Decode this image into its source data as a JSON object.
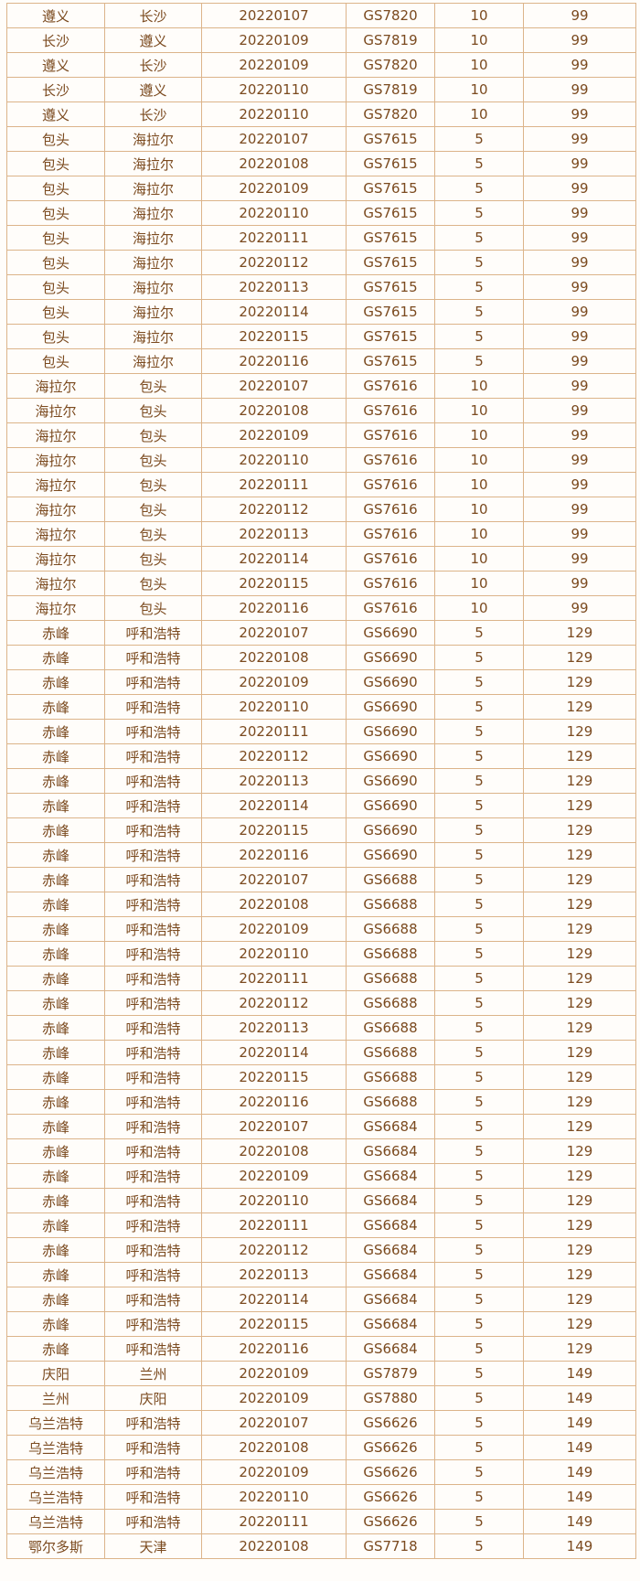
{
  "colors": {
    "border": "#dcb48a",
    "text": "#7b4a1f",
    "background": "#fffdfa"
  },
  "rows": [
    [
      "遵义",
      "长沙",
      "20220107",
      "GS7820",
      "10",
      "99"
    ],
    [
      "长沙",
      "遵义",
      "20220109",
      "GS7819",
      "10",
      "99"
    ],
    [
      "遵义",
      "长沙",
      "20220109",
      "GS7820",
      "10",
      "99"
    ],
    [
      "长沙",
      "遵义",
      "20220110",
      "GS7819",
      "10",
      "99"
    ],
    [
      "遵义",
      "长沙",
      "20220110",
      "GS7820",
      "10",
      "99"
    ],
    [
      "包头",
      "海拉尔",
      "20220107",
      "GS7615",
      "5",
      "99"
    ],
    [
      "包头",
      "海拉尔",
      "20220108",
      "GS7615",
      "5",
      "99"
    ],
    [
      "包头",
      "海拉尔",
      "20220109",
      "GS7615",
      "5",
      "99"
    ],
    [
      "包头",
      "海拉尔",
      "20220110",
      "GS7615",
      "5",
      "99"
    ],
    [
      "包头",
      "海拉尔",
      "20220111",
      "GS7615",
      "5",
      "99"
    ],
    [
      "包头",
      "海拉尔",
      "20220112",
      "GS7615",
      "5",
      "99"
    ],
    [
      "包头",
      "海拉尔",
      "20220113",
      "GS7615",
      "5",
      "99"
    ],
    [
      "包头",
      "海拉尔",
      "20220114",
      "GS7615",
      "5",
      "99"
    ],
    [
      "包头",
      "海拉尔",
      "20220115",
      "GS7615",
      "5",
      "99"
    ],
    [
      "包头",
      "海拉尔",
      "20220116",
      "GS7615",
      "5",
      "99"
    ],
    [
      "海拉尔",
      "包头",
      "20220107",
      "GS7616",
      "10",
      "99"
    ],
    [
      "海拉尔",
      "包头",
      "20220108",
      "GS7616",
      "10",
      "99"
    ],
    [
      "海拉尔",
      "包头",
      "20220109",
      "GS7616",
      "10",
      "99"
    ],
    [
      "海拉尔",
      "包头",
      "20220110",
      "GS7616",
      "10",
      "99"
    ],
    [
      "海拉尔",
      "包头",
      "20220111",
      "GS7616",
      "10",
      "99"
    ],
    [
      "海拉尔",
      "包头",
      "20220112",
      "GS7616",
      "10",
      "99"
    ],
    [
      "海拉尔",
      "包头",
      "20220113",
      "GS7616",
      "10",
      "99"
    ],
    [
      "海拉尔",
      "包头",
      "20220114",
      "GS7616",
      "10",
      "99"
    ],
    [
      "海拉尔",
      "包头",
      "20220115",
      "GS7616",
      "10",
      "99"
    ],
    [
      "海拉尔",
      "包头",
      "20220116",
      "GS7616",
      "10",
      "99"
    ],
    [
      "赤峰",
      "呼和浩特",
      "20220107",
      "GS6690",
      "5",
      "129"
    ],
    [
      "赤峰",
      "呼和浩特",
      "20220108",
      "GS6690",
      "5",
      "129"
    ],
    [
      "赤峰",
      "呼和浩特",
      "20220109",
      "GS6690",
      "5",
      "129"
    ],
    [
      "赤峰",
      "呼和浩特",
      "20220110",
      "GS6690",
      "5",
      "129"
    ],
    [
      "赤峰",
      "呼和浩特",
      "20220111",
      "GS6690",
      "5",
      "129"
    ],
    [
      "赤峰",
      "呼和浩特",
      "20220112",
      "GS6690",
      "5",
      "129"
    ],
    [
      "赤峰",
      "呼和浩特",
      "20220113",
      "GS6690",
      "5",
      "129"
    ],
    [
      "赤峰",
      "呼和浩特",
      "20220114",
      "GS6690",
      "5",
      "129"
    ],
    [
      "赤峰",
      "呼和浩特",
      "20220115",
      "GS6690",
      "5",
      "129"
    ],
    [
      "赤峰",
      "呼和浩特",
      "20220116",
      "GS6690",
      "5",
      "129"
    ],
    [
      "赤峰",
      "呼和浩特",
      "20220107",
      "GS6688",
      "5",
      "129"
    ],
    [
      "赤峰",
      "呼和浩特",
      "20220108",
      "GS6688",
      "5",
      "129"
    ],
    [
      "赤峰",
      "呼和浩特",
      "20220109",
      "GS6688",
      "5",
      "129"
    ],
    [
      "赤峰",
      "呼和浩特",
      "20220110",
      "GS6688",
      "5",
      "129"
    ],
    [
      "赤峰",
      "呼和浩特",
      "20220111",
      "GS6688",
      "5",
      "129"
    ],
    [
      "赤峰",
      "呼和浩特",
      "20220112",
      "GS6688",
      "5",
      "129"
    ],
    [
      "赤峰",
      "呼和浩特",
      "20220113",
      "GS6688",
      "5",
      "129"
    ],
    [
      "赤峰",
      "呼和浩特",
      "20220114",
      "GS6688",
      "5",
      "129"
    ],
    [
      "赤峰",
      "呼和浩特",
      "20220115",
      "GS6688",
      "5",
      "129"
    ],
    [
      "赤峰",
      "呼和浩特",
      "20220116",
      "GS6688",
      "5",
      "129"
    ],
    [
      "赤峰",
      "呼和浩特",
      "20220107",
      "GS6684",
      "5",
      "129"
    ],
    [
      "赤峰",
      "呼和浩特",
      "20220108",
      "GS6684",
      "5",
      "129"
    ],
    [
      "赤峰",
      "呼和浩特",
      "20220109",
      "GS6684",
      "5",
      "129"
    ],
    [
      "赤峰",
      "呼和浩特",
      "20220110",
      "GS6684",
      "5",
      "129"
    ],
    [
      "赤峰",
      "呼和浩特",
      "20220111",
      "GS6684",
      "5",
      "129"
    ],
    [
      "赤峰",
      "呼和浩特",
      "20220112",
      "GS6684",
      "5",
      "129"
    ],
    [
      "赤峰",
      "呼和浩特",
      "20220113",
      "GS6684",
      "5",
      "129"
    ],
    [
      "赤峰",
      "呼和浩特",
      "20220114",
      "GS6684",
      "5",
      "129"
    ],
    [
      "赤峰",
      "呼和浩特",
      "20220115",
      "GS6684",
      "5",
      "129"
    ],
    [
      "赤峰",
      "呼和浩特",
      "20220116",
      "GS6684",
      "5",
      "129"
    ],
    [
      "庆阳",
      "兰州",
      "20220109",
      "GS7879",
      "5",
      "149"
    ],
    [
      "兰州",
      "庆阳",
      "20220109",
      "GS7880",
      "5",
      "149"
    ],
    [
      "乌兰浩特",
      "呼和浩特",
      "20220107",
      "GS6626",
      "5",
      "149"
    ],
    [
      "乌兰浩特",
      "呼和浩特",
      "20220108",
      "GS6626",
      "5",
      "149"
    ],
    [
      "乌兰浩特",
      "呼和浩特",
      "20220109",
      "GS6626",
      "5",
      "149"
    ],
    [
      "乌兰浩特",
      "呼和浩特",
      "20220110",
      "GS6626",
      "5",
      "149"
    ],
    [
      "乌兰浩特",
      "呼和浩特",
      "20220111",
      "GS6626",
      "5",
      "149"
    ],
    [
      "鄂尔多斯",
      "天津",
      "20220108",
      "GS7718",
      "5",
      "149"
    ]
  ]
}
